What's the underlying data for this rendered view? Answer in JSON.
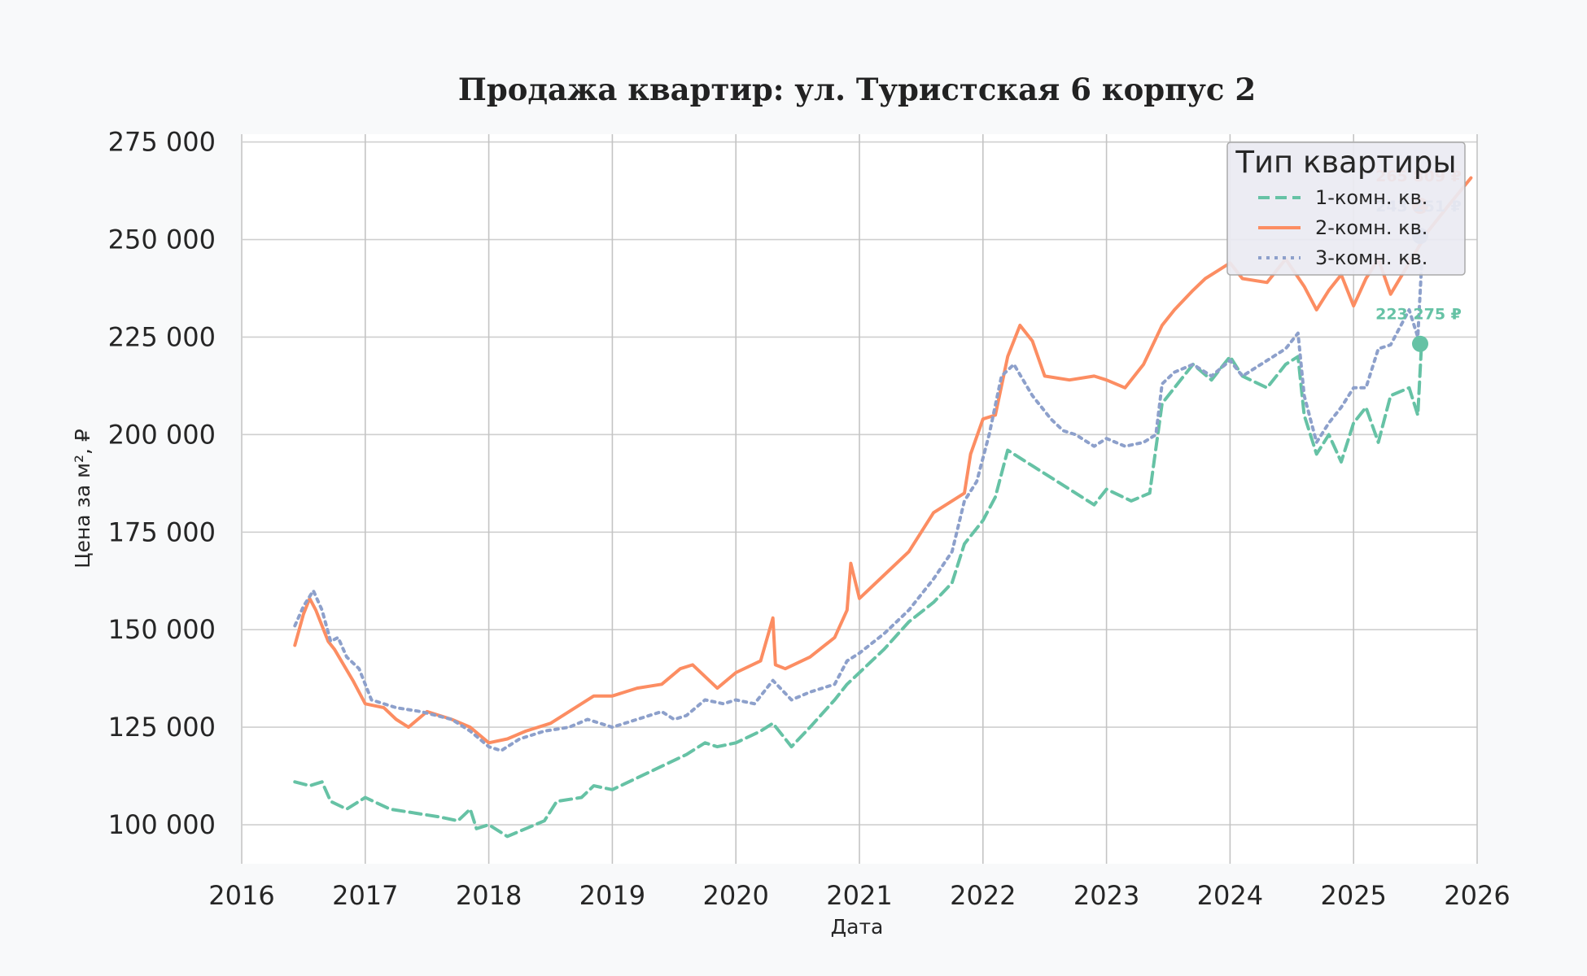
{
  "chart_data": {
    "type": "line",
    "title": "Продажа квартир: ул. Туристская 6 корпус 2",
    "xlabel": "Дата",
    "ylabel": "Цена за м², ₽",
    "xlim": [
      2016.0,
      2026.0
    ],
    "ylim": [
      90000,
      277000
    ],
    "x_ticks": [
      2016,
      2017,
      2018,
      2019,
      2020,
      2021,
      2022,
      2023,
      2024,
      2025,
      2026
    ],
    "x_tick_labels": [
      "2016",
      "2017",
      "2018",
      "2019",
      "2020",
      "2021",
      "2022",
      "2023",
      "2024",
      "2025",
      "2026"
    ],
    "y_ticks": [
      100000,
      125000,
      150000,
      175000,
      200000,
      225000,
      250000,
      275000
    ],
    "y_tick_labels": [
      "100 000",
      "125 000",
      "150 000",
      "175 000",
      "200 000",
      "225 000",
      "250 000",
      "275 000"
    ],
    "grid": true,
    "legend": {
      "title": "Тип квартиры",
      "placement": "top-right"
    },
    "series": [
      {
        "name": "1-комн. кв.",
        "color": "#66c2a5",
        "dash": "dashed",
        "end_label": "223 275 ₽",
        "end_value": 223275,
        "x": [
          2016.43,
          2016.55,
          2016.65,
          2016.72,
          2016.85,
          2017.0,
          2017.2,
          2017.4,
          2017.6,
          2017.75,
          2017.85,
          2017.9,
          2018.0,
          2018.15,
          2018.3,
          2018.45,
          2018.55,
          2018.75,
          2018.85,
          2019.0,
          2019.2,
          2019.4,
          2019.6,
          2019.75,
          2019.85,
          2020.0,
          2020.2,
          2020.3,
          2020.45,
          2020.6,
          2020.8,
          2020.9,
          2021.0,
          2021.2,
          2021.4,
          2021.6,
          2021.75,
          2021.85,
          2022.0,
          2022.1,
          2022.2,
          2022.35,
          2022.5,
          2022.7,
          2022.9,
          2023.0,
          2023.2,
          2023.35,
          2023.45,
          2023.55,
          2023.7,
          2023.85,
          2024.0,
          2024.1,
          2024.3,
          2024.45,
          2024.55,
          2024.6,
          2024.7,
          2024.8,
          2024.9,
          2025.0,
          2025.1,
          2025.2,
          2025.3,
          2025.45,
          2025.52,
          2025.55
        ],
        "y": [
          111000,
          110000,
          111000,
          106000,
          104000,
          107000,
          104000,
          103000,
          102000,
          101000,
          104000,
          99000,
          100000,
          97000,
          99000,
          101000,
          106000,
          107000,
          110000,
          109000,
          112000,
          115000,
          118000,
          121000,
          120000,
          121000,
          124000,
          126000,
          120000,
          125000,
          132000,
          136000,
          139000,
          145000,
          152000,
          157000,
          162000,
          172000,
          178000,
          184000,
          196000,
          193000,
          190000,
          186000,
          182000,
          186000,
          183000,
          185000,
          208000,
          212000,
          218000,
          214000,
          220000,
          215000,
          212000,
          218000,
          220000,
          205000,
          195000,
          200000,
          193000,
          203000,
          207000,
          198000,
          210000,
          212000,
          205000,
          223275
        ]
      },
      {
        "name": "2-комн. кв.",
        "color": "#fc8d62",
        "dash": "solid",
        "end_label": "265 809 ₽",
        "end_value": 265809,
        "x": [
          2016.43,
          2016.5,
          2016.55,
          2016.6,
          2016.7,
          2016.75,
          2016.9,
          2017.0,
          2017.15,
          2017.25,
          2017.35,
          2017.5,
          2017.7,
          2017.85,
          2018.0,
          2018.15,
          2018.3,
          2018.5,
          2018.7,
          2018.85,
          2019.0,
          2019.2,
          2019.4,
          2019.55,
          2019.65,
          2019.75,
          2019.85,
          2020.0,
          2020.2,
          2020.3,
          2020.32,
          2020.4,
          2020.6,
          2020.8,
          2020.9,
          2020.93,
          2021.0,
          2021.2,
          2021.4,
          2021.6,
          2021.75,
          2021.85,
          2021.9,
          2022.0,
          2022.1,
          2022.2,
          2022.3,
          2022.4,
          2022.5,
          2022.7,
          2022.9,
          2023.0,
          2023.15,
          2023.3,
          2023.45,
          2023.55,
          2023.7,
          2023.8,
          2023.9,
          2024.0,
          2024.1,
          2024.3,
          2024.45,
          2024.6,
          2024.7,
          2024.8,
          2024.9,
          2025.0,
          2025.1,
          2025.2,
          2025.3,
          2025.45,
          2025.6,
          2025.75,
          2025.95
        ],
        "y": [
          146000,
          154000,
          158000,
          155000,
          147000,
          145000,
          137000,
          131000,
          130000,
          127000,
          125000,
          129000,
          127000,
          125000,
          121000,
          122000,
          124000,
          126000,
          130000,
          133000,
          133000,
          135000,
          136000,
          140000,
          141000,
          138000,
          135000,
          139000,
          142000,
          153000,
          141000,
          140000,
          143000,
          148000,
          155000,
          167000,
          158000,
          164000,
          170000,
          180000,
          183000,
          185000,
          195000,
          204000,
          205000,
          220000,
          228000,
          224000,
          215000,
          214000,
          215000,
          214000,
          212000,
          218000,
          228000,
          232000,
          237000,
          240000,
          242000,
          244000,
          240000,
          239000,
          245000,
          238000,
          232000,
          237000,
          241000,
          233000,
          240000,
          245000,
          236000,
          244000,
          252000,
          258000,
          265809
        ]
      },
      {
        "name": "3-комн. кв.",
        "color": "#8da0cb",
        "dash": "dotted",
        "end_label": "243 251 ₽",
        "end_value": 243251,
        "x": [
          2016.43,
          2016.5,
          2016.58,
          2016.65,
          2016.72,
          2016.78,
          2016.85,
          2016.95,
          2017.05,
          2017.25,
          2017.45,
          2017.7,
          2017.85,
          2018.0,
          2018.1,
          2018.25,
          2018.45,
          2018.65,
          2018.8,
          2019.0,
          2019.2,
          2019.4,
          2019.5,
          2019.6,
          2019.75,
          2019.9,
          2020.0,
          2020.15,
          2020.3,
          2020.45,
          2020.6,
          2020.8,
          2020.9,
          2021.0,
          2021.2,
          2021.4,
          2021.6,
          2021.75,
          2021.85,
          2021.95,
          2022.05,
          2022.15,
          2022.25,
          2022.4,
          2022.55,
          2022.65,
          2022.75,
          2022.9,
          2023.0,
          2023.15,
          2023.3,
          2023.4,
          2023.45,
          2023.55,
          2023.7,
          2023.85,
          2024.0,
          2024.1,
          2024.3,
          2024.45,
          2024.55,
          2024.6,
          2024.7,
          2024.8,
          2024.9,
          2025.0,
          2025.1,
          2025.2,
          2025.3,
          2025.45,
          2025.52,
          2025.55
        ],
        "y": [
          151000,
          156000,
          160000,
          155000,
          147000,
          148000,
          143000,
          140000,
          132000,
          130000,
          129000,
          127000,
          124000,
          120000,
          119000,
          122000,
          124000,
          125000,
          127000,
          125000,
          127000,
          129000,
          127000,
          128000,
          132000,
          131000,
          132000,
          131000,
          137000,
          132000,
          134000,
          136000,
          142000,
          144000,
          149000,
          155000,
          163000,
          170000,
          183000,
          188000,
          200000,
          215000,
          218000,
          210000,
          204000,
          201000,
          200000,
          197000,
          199000,
          197000,
          198000,
          200000,
          213000,
          216000,
          218000,
          215000,
          219000,
          215000,
          219000,
          222000,
          226000,
          210000,
          198000,
          203000,
          207000,
          212000,
          212000,
          222000,
          223000,
          232000,
          225000,
          243251
        ]
      }
    ]
  }
}
